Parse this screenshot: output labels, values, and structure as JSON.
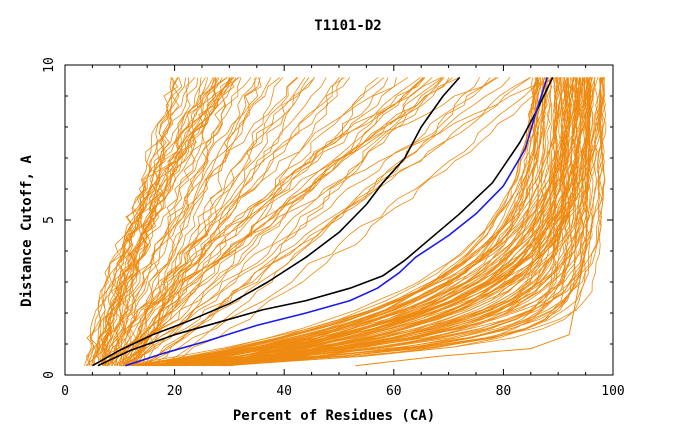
{
  "chart_data": {
    "type": "line",
    "title": "T1101-D2",
    "xlabel": "Percent of Residues (CA)",
    "ylabel": "Distance Cutoff, A",
    "xlim": [
      0,
      100
    ],
    "ylim": [
      0,
      10
    ],
    "xticks": [
      0,
      20,
      40,
      60,
      80,
      100
    ],
    "yticks": [
      0,
      5,
      10
    ],
    "grid": false,
    "colors": {
      "background_models": "#ee8a10",
      "highlight_black": "#000000",
      "highlight_blue": "#1a1aee"
    },
    "highlighted_series": [
      {
        "color": "#000000",
        "x": [
          5,
          10,
          16,
          22,
          30,
          37,
          44,
          50,
          55,
          58,
          62,
          65,
          69,
          72
        ],
        "y": [
          0.3,
          0.8,
          1.3,
          1.7,
          2.3,
          3.0,
          3.8,
          4.6,
          5.5,
          6.2,
          7.0,
          8.0,
          9.0,
          9.6
        ]
      },
      {
        "color": "#000000",
        "x": [
          6,
          12,
          20,
          28,
          36,
          44,
          52,
          58,
          62,
          66,
          72,
          78,
          83,
          86,
          89
        ],
        "y": [
          0.3,
          0.8,
          1.3,
          1.7,
          2.1,
          2.4,
          2.8,
          3.2,
          3.7,
          4.3,
          5.2,
          6.2,
          7.5,
          8.5,
          9.6
        ]
      },
      {
        "color": "#1a1aee",
        "x": [
          11,
          18,
          26,
          35,
          44,
          52,
          57,
          61,
          64,
          70,
          75,
          80,
          84,
          86,
          88
        ],
        "y": [
          0.3,
          0.7,
          1.1,
          1.6,
          2.0,
          2.4,
          2.8,
          3.3,
          3.8,
          4.5,
          5.2,
          6.1,
          7.3,
          8.5,
          9.6
        ]
      }
    ],
    "low_outlier": {
      "x": [
        53,
        68,
        85,
        92,
        95,
        96
      ],
      "y": [
        0.3,
        0.6,
        0.85,
        1.3,
        4.0,
        9.6
      ]
    }
  }
}
